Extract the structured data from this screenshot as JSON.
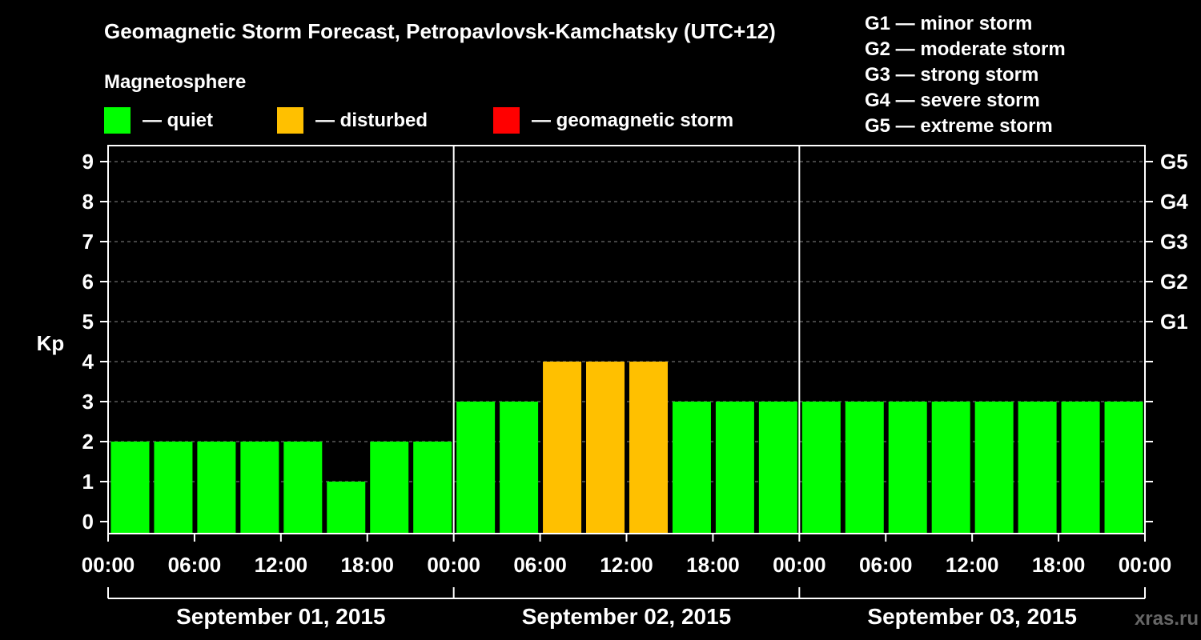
{
  "chart_data": {
    "type": "bar",
    "title": "Geomagnetic Storm Forecast, Petropavlovsk-Kamchatsky (UTC+12)",
    "legend_title": "Magnetosphere",
    "legend": [
      {
        "label": "— quiet",
        "color": "#00ff00"
      },
      {
        "label": "— disturbed",
        "color": "#ffc000"
      },
      {
        "label": "— geomagnetic storm",
        "color": "#ff0000"
      }
    ],
    "storm_scale": [
      "G1 — minor storm",
      "G2 — moderate storm",
      "G3 — strong storm",
      "G4 — severe storm",
      "G5 — extreme storm"
    ],
    "ylabel": "Kp",
    "ylim": [
      0,
      9
    ],
    "yticks": [
      "0",
      "1",
      "2",
      "3",
      "4",
      "5",
      "6",
      "7",
      "8",
      "9"
    ],
    "right_ticks": [
      {
        "value": 5,
        "label": "G1"
      },
      {
        "value": 6,
        "label": "G2"
      },
      {
        "value": 7,
        "label": "G3"
      },
      {
        "value": 8,
        "label": "G4"
      },
      {
        "value": 9,
        "label": "G5"
      }
    ],
    "xticks": [
      "00:00",
      "06:00",
      "12:00",
      "18:00",
      "00:00",
      "06:00",
      "12:00",
      "18:00",
      "00:00",
      "06:00",
      "12:00",
      "18:00",
      "00:00"
    ],
    "days": [
      "September 01, 2015",
      "September 02, 2015",
      "September 03, 2015"
    ],
    "values": [
      2,
      2,
      2,
      2,
      2,
      1,
      2,
      2,
      3,
      3,
      4,
      4,
      4,
      3,
      3,
      3,
      3,
      3,
      3,
      3,
      3,
      3,
      3,
      3
    ],
    "colors": {
      "quiet": "#00ff00",
      "disturbed": "#ffc000",
      "storm": "#ff0000",
      "grid": "#888888"
    }
  },
  "watermark": "xras.ru"
}
